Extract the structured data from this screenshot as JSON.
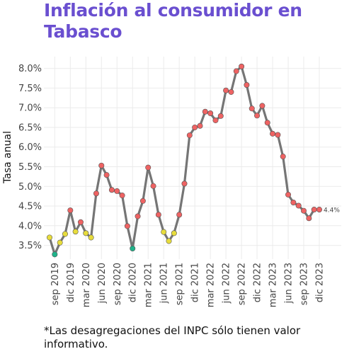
{
  "title": "Inflación al consumidor en Tabasco",
  "note": "*Las desagregaciones del INPC sólo tienen valor informativo.",
  "colors": {
    "title": "#6a4fd0",
    "line": "#757575",
    "high": "#ee6363",
    "mid": "#e7dc3c",
    "low": "#1fb38a",
    "grid": "#ebebeb"
  },
  "chart_data": {
    "type": "line",
    "ylabel": "Tasa anual",
    "ylim": [
      3.15,
      8.3
    ],
    "y_ticks": [
      3.5,
      4.0,
      4.5,
      5.0,
      5.5,
      6.0,
      6.5,
      7.0,
      7.5,
      8.0
    ],
    "y_tick_labels": [
      "3.5%",
      "4.0%",
      "4.5%",
      "5.0%",
      "5.5%",
      "6.0%",
      "6.5%",
      "7.0%",
      "7.5%",
      "8.0%"
    ],
    "x_tick_labels": [
      "sep 2019",
      "dic 2019",
      "mar 2020",
      "jun 2020",
      "sep 2020",
      "dic 2020",
      "mar 2021",
      "jun 2021",
      "sep 2021",
      "dic 2021",
      "mar 2022",
      "jun 2022",
      "sep 2022",
      "dic 2022",
      "mar 2023",
      "jun 2023",
      "sep 2023",
      "dic 2023"
    ],
    "x_tick_dates": [
      "2019-09",
      "2019-12",
      "2020-03",
      "2020-06",
      "2020-09",
      "2020-12",
      "2021-03",
      "2021-06",
      "2021-09",
      "2021-12",
      "2022-03",
      "2022-06",
      "2022-09",
      "2022-12",
      "2023-03",
      "2023-06",
      "2023-09",
      "2023-12"
    ],
    "grid": true,
    "end_label": "4.4%",
    "points": [
      {
        "date": "2019-08",
        "value": 3.7,
        "level": "mid"
      },
      {
        "date": "2019-09",
        "value": 3.27,
        "level": "low"
      },
      {
        "date": "2019-10",
        "value": 3.57,
        "level": "mid"
      },
      {
        "date": "2019-11",
        "value": 3.79,
        "level": "mid"
      },
      {
        "date": "2019-12",
        "value": 4.39,
        "level": "high"
      },
      {
        "date": "2020-01",
        "value": 3.85,
        "level": "mid"
      },
      {
        "date": "2020-02",
        "value": 4.09,
        "level": "high"
      },
      {
        "date": "2020-03",
        "value": 3.81,
        "level": "mid"
      },
      {
        "date": "2020-04",
        "value": 3.7,
        "level": "mid"
      },
      {
        "date": "2020-05",
        "value": 4.82,
        "level": "high"
      },
      {
        "date": "2020-06",
        "value": 5.53,
        "level": "high"
      },
      {
        "date": "2020-07",
        "value": 5.29,
        "level": "high"
      },
      {
        "date": "2020-08",
        "value": 4.91,
        "level": "high"
      },
      {
        "date": "2020-09",
        "value": 4.88,
        "level": "high"
      },
      {
        "date": "2020-10",
        "value": 4.77,
        "level": "high"
      },
      {
        "date": "2020-11",
        "value": 3.99,
        "level": "high"
      },
      {
        "date": "2020-12",
        "value": 3.42,
        "level": "low"
      },
      {
        "date": "2021-01",
        "value": 4.24,
        "level": "high"
      },
      {
        "date": "2021-02",
        "value": 4.63,
        "level": "high"
      },
      {
        "date": "2021-03",
        "value": 5.48,
        "level": "high"
      },
      {
        "date": "2021-04",
        "value": 5.01,
        "level": "high"
      },
      {
        "date": "2021-05",
        "value": 4.28,
        "level": "high"
      },
      {
        "date": "2021-06",
        "value": 3.84,
        "level": "mid"
      },
      {
        "date": "2021-07",
        "value": 3.61,
        "level": "mid"
      },
      {
        "date": "2021-08",
        "value": 3.81,
        "level": "mid"
      },
      {
        "date": "2021-09",
        "value": 4.28,
        "level": "high"
      },
      {
        "date": "2021-10",
        "value": 5.07,
        "level": "high"
      },
      {
        "date": "2021-11",
        "value": 6.3,
        "level": "high"
      },
      {
        "date": "2021-12",
        "value": 6.5,
        "level": "high"
      },
      {
        "date": "2022-01",
        "value": 6.54,
        "level": "high"
      },
      {
        "date": "2022-02",
        "value": 6.9,
        "level": "high"
      },
      {
        "date": "2022-03",
        "value": 6.86,
        "level": "high"
      },
      {
        "date": "2022-04",
        "value": 6.68,
        "level": "high"
      },
      {
        "date": "2022-05",
        "value": 6.79,
        "level": "high"
      },
      {
        "date": "2022-06",
        "value": 7.44,
        "level": "high"
      },
      {
        "date": "2022-07",
        "value": 7.4,
        "level": "high"
      },
      {
        "date": "2022-08",
        "value": 7.93,
        "level": "high"
      },
      {
        "date": "2022-09",
        "value": 8.05,
        "level": "high"
      },
      {
        "date": "2022-10",
        "value": 7.58,
        "level": "high"
      },
      {
        "date": "2022-11",
        "value": 6.98,
        "level": "high"
      },
      {
        "date": "2022-12",
        "value": 6.8,
        "level": "high"
      },
      {
        "date": "2023-01",
        "value": 7.05,
        "level": "high"
      },
      {
        "date": "2023-02",
        "value": 6.62,
        "level": "high"
      },
      {
        "date": "2023-03",
        "value": 6.34,
        "level": "high"
      },
      {
        "date": "2023-04",
        "value": 6.31,
        "level": "high"
      },
      {
        "date": "2023-05",
        "value": 5.76,
        "level": "high"
      },
      {
        "date": "2023-06",
        "value": 4.79,
        "level": "high"
      },
      {
        "date": "2023-07",
        "value": 4.59,
        "level": "high"
      },
      {
        "date": "2023-08",
        "value": 4.51,
        "level": "high"
      },
      {
        "date": "2023-09",
        "value": 4.38,
        "level": "high"
      },
      {
        "date": "2023-10",
        "value": 4.19,
        "level": "high"
      },
      {
        "date": "2023-11",
        "value": 4.41,
        "level": "high"
      },
      {
        "date": "2023-12",
        "value": 4.41,
        "level": "high"
      }
    ]
  }
}
